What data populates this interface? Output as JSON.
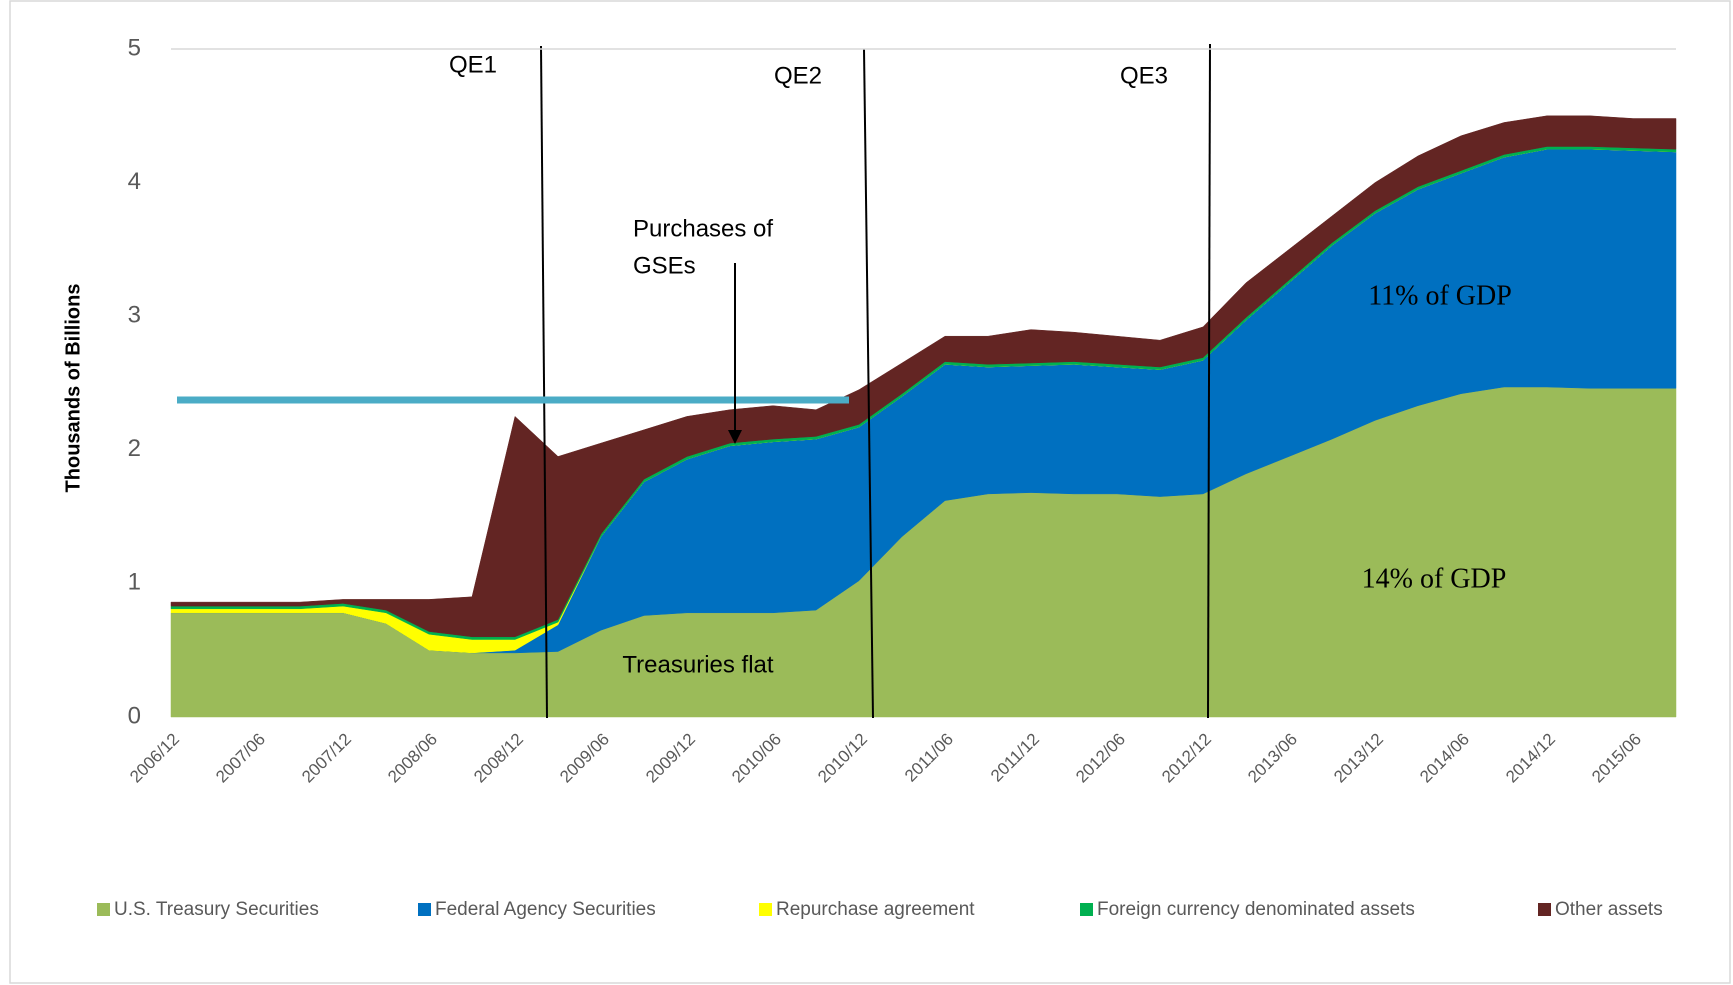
{
  "chart_data": {
    "type": "stacked_area",
    "y_label": "Thousands of Billions",
    "categories": [
      "2006/12",
      null,
      "2007/06",
      null,
      "2007/12",
      null,
      "2008/06",
      null,
      "2008/12",
      null,
      "2009/06",
      null,
      "2009/12",
      null,
      "2010/06",
      null,
      "2010/12",
      null,
      "2011/06",
      null,
      "2011/12",
      null,
      "2012/06",
      null,
      "2012/12",
      null,
      "2013/06",
      null,
      "2013/12",
      null,
      "2014/06",
      null,
      "2014/12",
      null,
      "2015/06",
      null
    ],
    "series": [
      {
        "name": "U.S. Treasury Securities",
        "color": "#9bbb59",
        "values": [
          0.78,
          0.78,
          0.78,
          0.78,
          0.78,
          0.7,
          0.5,
          0.48,
          0.48,
          0.49,
          0.65,
          0.76,
          0.78,
          0.78,
          0.78,
          0.8,
          1.02,
          1.35,
          1.62,
          1.67,
          1.68,
          1.67,
          1.67,
          1.65,
          1.67,
          1.82,
          1.95,
          2.08,
          2.22,
          2.33,
          2.42,
          2.47,
          2.47,
          2.46,
          2.46,
          2.46
        ]
      },
      {
        "name": "Federal Agency Securities",
        "color": "#0070c0",
        "values": [
          0,
          0,
          0,
          0,
          0,
          0,
          0,
          0,
          0.02,
          0.2,
          0.7,
          1.0,
          1.15,
          1.25,
          1.28,
          1.28,
          1.15,
          1.05,
          1.02,
          0.95,
          0.95,
          0.97,
          0.95,
          0.95,
          1.0,
          1.15,
          1.3,
          1.45,
          1.55,
          1.62,
          1.65,
          1.72,
          1.78,
          1.79,
          1.78,
          1.77
        ]
      },
      {
        "name": "Repurchase agreement",
        "color": "#ffff00",
        "values": [
          0.03,
          0.03,
          0.03,
          0.03,
          0.05,
          0.08,
          0.12,
          0.1,
          0.08,
          0.02,
          0,
          0,
          0,
          0,
          0,
          0,
          0,
          0,
          0,
          0,
          0,
          0,
          0,
          0,
          0,
          0,
          0,
          0,
          0,
          0,
          0,
          0,
          0,
          0,
          0,
          0
        ]
      },
      {
        "name": "Foreign currency denominated assets",
        "color": "#00b050",
        "values": [
          0.02,
          0.02,
          0.02,
          0.02,
          0.02,
          0.02,
          0.02,
          0.02,
          0.02,
          0.02,
          0.02,
          0.02,
          0.02,
          0.02,
          0.02,
          0.02,
          0.02,
          0.02,
          0.02,
          0.02,
          0.02,
          0.02,
          0.02,
          0.02,
          0.02,
          0.02,
          0.02,
          0.02,
          0.02,
          0.02,
          0.02,
          0.02,
          0.02,
          0.02,
          0.02,
          0.02
        ]
      },
      {
        "name": "Other assets",
        "color": "#632523",
        "values": [
          0.03,
          0.03,
          0.03,
          0.03,
          0.03,
          0.08,
          0.24,
          0.3,
          1.65,
          1.22,
          0.68,
          0.37,
          0.3,
          0.25,
          0.25,
          0.2,
          0.26,
          0.23,
          0.19,
          0.21,
          0.25,
          0.22,
          0.21,
          0.2,
          0.23,
          0.26,
          0.23,
          0.2,
          0.21,
          0.23,
          0.26,
          0.24,
          0.23,
          0.23,
          0.22,
          0.23
        ]
      }
    ],
    "ylim": [
      0,
      5
    ],
    "yticks": [
      0,
      1,
      2,
      3,
      4,
      5
    ],
    "legend": "bottom",
    "annotations": [
      "QE1",
      "QE2",
      "QE3",
      "Purchases of",
      "GSEs",
      "Treasuries flat",
      "11% of GDP",
      "14% of GDP"
    ]
  }
}
